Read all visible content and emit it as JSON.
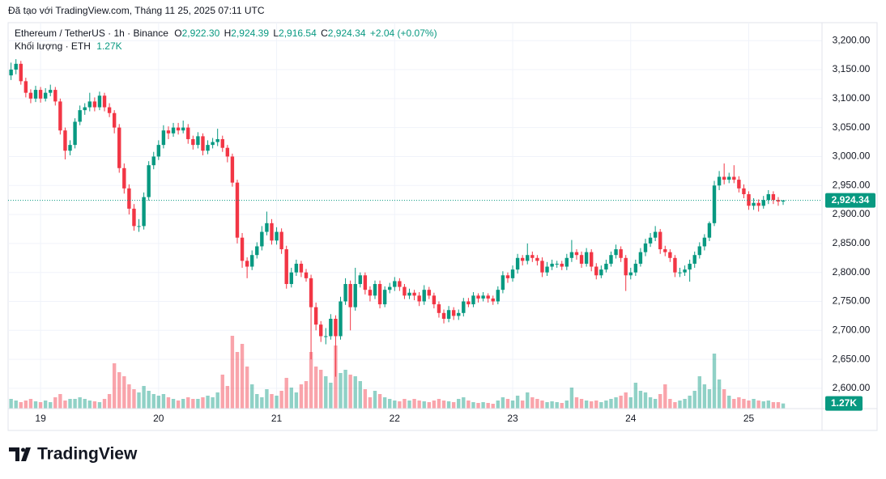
{
  "header": {
    "attribution": "Đã tạo với TradingView.com, Tháng 11 25, 2025 07:11 UTC"
  },
  "chart_data": {
    "type": "candlestick",
    "symbol": "Ethereum / TetherUS · 1h · Binance",
    "legend": {
      "o_label": "O",
      "o": "2,922.30",
      "h_label": "H",
      "h": "2,924.39",
      "l_label": "L",
      "l": "2,916.54",
      "c_label": "C",
      "c": "2,924.34",
      "change": "+2.04 (+0.07%)"
    },
    "volume_title": "Khối lượng · ETH",
    "volume_last": "1.27K",
    "last_price_label": "2,924.34",
    "up_color": "#089981",
    "down_color": "#f23645",
    "ylim": [
      2565,
      3231
    ],
    "yticks": [
      {
        "value": 2600,
        "label": "2,600.00"
      },
      {
        "value": 2650,
        "label": "2,650.00"
      },
      {
        "value": 2700,
        "label": "2,700.00"
      },
      {
        "value": 2750,
        "label": "2,750.00"
      },
      {
        "value": 2800,
        "label": "2,800.00"
      },
      {
        "value": 2850,
        "label": "2,850.00"
      },
      {
        "value": 2900,
        "label": "2,900.00"
      },
      {
        "value": 2950,
        "label": "2,950.00"
      },
      {
        "value": 3000,
        "label": "3,000.00"
      },
      {
        "value": 3050,
        "label": "3,050.00"
      },
      {
        "value": 3100,
        "label": "3,100.00"
      },
      {
        "value": 3150,
        "label": "3,150.00"
      },
      {
        "value": 3200,
        "label": "3,200.00"
      }
    ],
    "xlim": [
      -0.6,
      164.9
    ],
    "xticks": [
      {
        "value": 6,
        "label": "19"
      },
      {
        "value": 30,
        "label": "20"
      },
      {
        "value": 54,
        "label": "21"
      },
      {
        "value": 78,
        "label": "22"
      },
      {
        "value": 102,
        "label": "23"
      },
      {
        "value": 126,
        "label": "24"
      },
      {
        "value": 150,
        "label": "25"
      }
    ],
    "volume_lim": [
      0,
      19000
    ],
    "ohlc": [
      [
        3140,
        3162,
        3132,
        3150
      ],
      [
        3150,
        3168,
        3142,
        3160
      ],
      [
        3160,
        3165,
        3124,
        3130
      ],
      [
        3130,
        3136,
        3102,
        3110
      ],
      [
        3110,
        3116,
        3092,
        3100
      ],
      [
        3100,
        3122,
        3094,
        3115
      ],
      [
        3115,
        3120,
        3093,
        3100
      ],
      [
        3100,
        3118,
        3095,
        3110
      ],
      [
        3110,
        3124,
        3104,
        3115
      ],
      [
        3115,
        3120,
        3088,
        3095
      ],
      [
        3095,
        3100,
        3038,
        3045
      ],
      [
        3045,
        3050,
        2995,
        3010
      ],
      [
        3010,
        3028,
        3002,
        3020
      ],
      [
        3020,
        3066,
        3014,
        3060
      ],
      [
        3060,
        3088,
        3054,
        3080
      ],
      [
        3080,
        3092,
        3072,
        3085
      ],
      [
        3085,
        3110,
        3078,
        3095
      ],
      [
        3095,
        3102,
        3078,
        3085
      ],
      [
        3085,
        3112,
        3080,
        3105
      ],
      [
        3105,
        3110,
        3078,
        3085
      ],
      [
        3085,
        3092,
        3068,
        3075
      ],
      [
        3075,
        3080,
        3040,
        3050
      ],
      [
        3050,
        3056,
        2972,
        2980
      ],
      [
        2980,
        2988,
        2936,
        2945
      ],
      [
        2945,
        2952,
        2900,
        2910
      ],
      [
        2910,
        2918,
        2872,
        2880
      ],
      [
        2880,
        2892,
        2870,
        2880
      ],
      [
        2880,
        2938,
        2874,
        2930
      ],
      [
        2930,
        2992,
        2924,
        2985
      ],
      [
        2985,
        3008,
        2978,
        3000
      ],
      [
        3000,
        3028,
        2994,
        3020
      ],
      [
        3020,
        3054,
        3014,
        3045
      ],
      [
        3045,
        3052,
        3030,
        3040
      ],
      [
        3040,
        3058,
        3034,
        3050
      ],
      [
        3050,
        3058,
        3038,
        3045
      ],
      [
        3045,
        3062,
        3040,
        3050
      ],
      [
        3050,
        3056,
        3022,
        3030
      ],
      [
        3030,
        3036,
        3012,
        3020
      ],
      [
        3020,
        3042,
        3014,
        3035
      ],
      [
        3035,
        3040,
        3002,
        3010
      ],
      [
        3010,
        3028,
        3004,
        3020
      ],
      [
        3020,
        3032,
        3014,
        3025
      ],
      [
        3025,
        3048,
        3018,
        3030
      ],
      [
        3030,
        3036,
        3008,
        3015
      ],
      [
        3015,
        3020,
        2990,
        3000
      ],
      [
        3000,
        3005,
        2948,
        2955
      ],
      [
        2955,
        2960,
        2850,
        2860
      ],
      [
        2860,
        2868,
        2808,
        2820
      ],
      [
        2820,
        2826,
        2790,
        2810
      ],
      [
        2810,
        2838,
        2804,
        2830
      ],
      [
        2830,
        2852,
        2824,
        2845
      ],
      [
        2845,
        2880,
        2838,
        2870
      ],
      [
        2870,
        2905,
        2864,
        2885
      ],
      [
        2885,
        2892,
        2848,
        2855
      ],
      [
        2855,
        2878,
        2848,
        2870
      ],
      [
        2870,
        2876,
        2832,
        2840
      ],
      [
        2840,
        2846,
        2772,
        2780
      ],
      [
        2780,
        2808,
        2774,
        2800
      ],
      [
        2800,
        2822,
        2794,
        2815
      ],
      [
        2815,
        2820,
        2792,
        2800
      ],
      [
        2800,
        2806,
        2784,
        2790
      ],
      [
        2790,
        2796,
        2650,
        2740
      ],
      [
        2740,
        2748,
        2700,
        2710
      ],
      [
        2710,
        2716,
        2680,
        2690
      ],
      [
        2690,
        2704,
        2676,
        2690
      ],
      [
        2690,
        2728,
        2684,
        2720
      ],
      [
        2720,
        2726,
        2620,
        2690
      ],
      [
        2690,
        2758,
        2684,
        2750
      ],
      [
        2750,
        2790,
        2744,
        2780
      ],
      [
        2780,
        2786,
        2700,
        2740
      ],
      [
        2740,
        2808,
        2734,
        2780
      ],
      [
        2780,
        2800,
        2774,
        2795
      ],
      [
        2795,
        2800,
        2762,
        2770
      ],
      [
        2770,
        2776,
        2750,
        2760
      ],
      [
        2760,
        2786,
        2754,
        2780
      ],
      [
        2780,
        2786,
        2738,
        2745
      ],
      [
        2745,
        2776,
        2740,
        2770
      ],
      [
        2770,
        2782,
        2764,
        2775
      ],
      [
        2775,
        2792,
        2768,
        2785
      ],
      [
        2785,
        2790,
        2768,
        2775
      ],
      [
        2775,
        2780,
        2754,
        2760
      ],
      [
        2760,
        2772,
        2754,
        2765
      ],
      [
        2765,
        2770,
        2752,
        2760
      ],
      [
        2760,
        2766,
        2742,
        2750
      ],
      [
        2750,
        2778,
        2744,
        2770
      ],
      [
        2770,
        2775,
        2754,
        2760
      ],
      [
        2760,
        2765,
        2738,
        2745
      ],
      [
        2745,
        2750,
        2722,
        2730
      ],
      [
        2730,
        2736,
        2712,
        2720
      ],
      [
        2720,
        2742,
        2714,
        2735
      ],
      [
        2735,
        2740,
        2718,
        2725
      ],
      [
        2725,
        2736,
        2718,
        2730
      ],
      [
        2730,
        2756,
        2724,
        2750
      ],
      [
        2750,
        2756,
        2740,
        2745
      ],
      [
        2745,
        2766,
        2740,
        2760
      ],
      [
        2760,
        2764,
        2748,
        2755
      ],
      [
        2755,
        2766,
        2750,
        2760
      ],
      [
        2760,
        2764,
        2748,
        2755
      ],
      [
        2755,
        2760,
        2744,
        2750
      ],
      [
        2750,
        2776,
        2745,
        2770
      ],
      [
        2770,
        2802,
        2764,
        2795
      ],
      [
        2795,
        2800,
        2782,
        2790
      ],
      [
        2790,
        2812,
        2784,
        2805
      ],
      [
        2805,
        2832,
        2798,
        2825
      ],
      [
        2825,
        2830,
        2812,
        2820
      ],
      [
        2820,
        2850,
        2814,
        2830
      ],
      [
        2830,
        2836,
        2818,
        2825
      ],
      [
        2825,
        2830,
        2812,
        2820
      ],
      [
        2820,
        2826,
        2792,
        2800
      ],
      [
        2800,
        2818,
        2794,
        2810
      ],
      [
        2810,
        2822,
        2804,
        2815
      ],
      [
        2815,
        2820,
        2808,
        2815
      ],
      [
        2815,
        2820,
        2804,
        2810
      ],
      [
        2810,
        2832,
        2804,
        2825
      ],
      [
        2825,
        2856,
        2818,
        2835
      ],
      [
        2835,
        2840,
        2822,
        2830
      ],
      [
        2830,
        2836,
        2808,
        2815
      ],
      [
        2815,
        2842,
        2810,
        2835
      ],
      [
        2835,
        2840,
        2802,
        2810
      ],
      [
        2810,
        2816,
        2788,
        2795
      ],
      [
        2795,
        2812,
        2790,
        2805
      ],
      [
        2805,
        2822,
        2800,
        2815
      ],
      [
        2815,
        2836,
        2810,
        2830
      ],
      [
        2830,
        2848,
        2824,
        2840
      ],
      [
        2840,
        2845,
        2818,
        2825
      ],
      [
        2825,
        2830,
        2768,
        2795
      ],
      [
        2795,
        2808,
        2788,
        2800
      ],
      [
        2800,
        2822,
        2794,
        2815
      ],
      [
        2815,
        2842,
        2810,
        2835
      ],
      [
        2835,
        2858,
        2828,
        2850
      ],
      [
        2850,
        2868,
        2844,
        2860
      ],
      [
        2860,
        2880,
        2854,
        2870
      ],
      [
        2870,
        2875,
        2832,
        2840
      ],
      [
        2840,
        2846,
        2828,
        2835
      ],
      [
        2835,
        2840,
        2818,
        2825
      ],
      [
        2825,
        2830,
        2792,
        2800
      ],
      [
        2800,
        2808,
        2792,
        2800
      ],
      [
        2800,
        2812,
        2794,
        2805
      ],
      [
        2805,
        2822,
        2784,
        2815
      ],
      [
        2815,
        2836,
        2808,
        2830
      ],
      [
        2830,
        2852,
        2824,
        2845
      ],
      [
        2845,
        2866,
        2838,
        2860
      ],
      [
        2860,
        2888,
        2854,
        2885
      ],
      [
        2885,
        2958,
        2880,
        2950
      ],
      [
        2950,
        2975,
        2942,
        2965
      ],
      [
        2965,
        2988,
        2952,
        2960
      ],
      [
        2960,
        2972,
        2954,
        2965
      ],
      [
        2965,
        2985,
        2954,
        2960
      ],
      [
        2960,
        2966,
        2938,
        2945
      ],
      [
        2945,
        2952,
        2928,
        2935
      ],
      [
        2935,
        2940,
        2908,
        2915
      ],
      [
        2915,
        2928,
        2908,
        2920
      ],
      [
        2920,
        2926,
        2905,
        2915
      ],
      [
        2915,
        2932,
        2910,
        2925
      ],
      [
        2925,
        2942,
        2918,
        2935
      ],
      [
        2935,
        2940,
        2918,
        2925
      ],
      [
        2925,
        2930,
        2915,
        2922.3
      ],
      [
        2922.3,
        2924.39,
        2916.54,
        2924.34
      ]
    ],
    "volume": [
      2400,
      2000,
      1600,
      2000,
      2400,
      1800,
      1600,
      2000,
      1600,
      2800,
      3600,
      2000,
      2400,
      2400,
      2800,
      2400,
      2000,
      1800,
      1600,
      2400,
      3600,
      11200,
      9000,
      8000,
      6000,
      4800,
      4000,
      5600,
      4400,
      3600,
      3200,
      3600,
      2800,
      2400,
      2000,
      2400,
      2800,
      2400,
      2400,
      2800,
      3200,
      2800,
      4000,
      8400,
      5600,
      18000,
      14000,
      16000,
      10400,
      6000,
      3600,
      2800,
      4800,
      3600,
      3200,
      4400,
      7600,
      5200,
      4000,
      6000,
      6800,
      14000,
      10400,
      9600,
      8000,
      6400,
      15600,
      8800,
      9600,
      8400,
      8000,
      6800,
      4800,
      2800,
      4400,
      3600,
      2800,
      2400,
      2000,
      1800,
      2400,
      2000,
      2400,
      2000,
      1800,
      1600,
      2000,
      2400,
      2000,
      1800,
      1600,
      2400,
      2800,
      2000,
      1600,
      1400,
      1600,
      1400,
      1200,
      2000,
      2800,
      2400,
      2000,
      3200,
      2000,
      4000,
      2800,
      2400,
      2000,
      1600,
      1800,
      1600,
      1400,
      2000,
      5200,
      2800,
      2400,
      2000,
      1800,
      2000,
      1600,
      2000,
      2400,
      2800,
      3200,
      4000,
      2800,
      6400,
      4400,
      4000,
      2800,
      2400,
      3600,
      6000,
      2400,
      1600,
      2000,
      2400,
      3200,
      4400,
      8000,
      6000,
      4800,
      13600,
      7200,
      4800,
      3200,
      2400,
      2800,
      2400,
      2000,
      2400,
      2000,
      1800,
      2000,
      1600,
      1600,
      1270
    ]
  },
  "footer": {
    "logo": "TradingView"
  }
}
